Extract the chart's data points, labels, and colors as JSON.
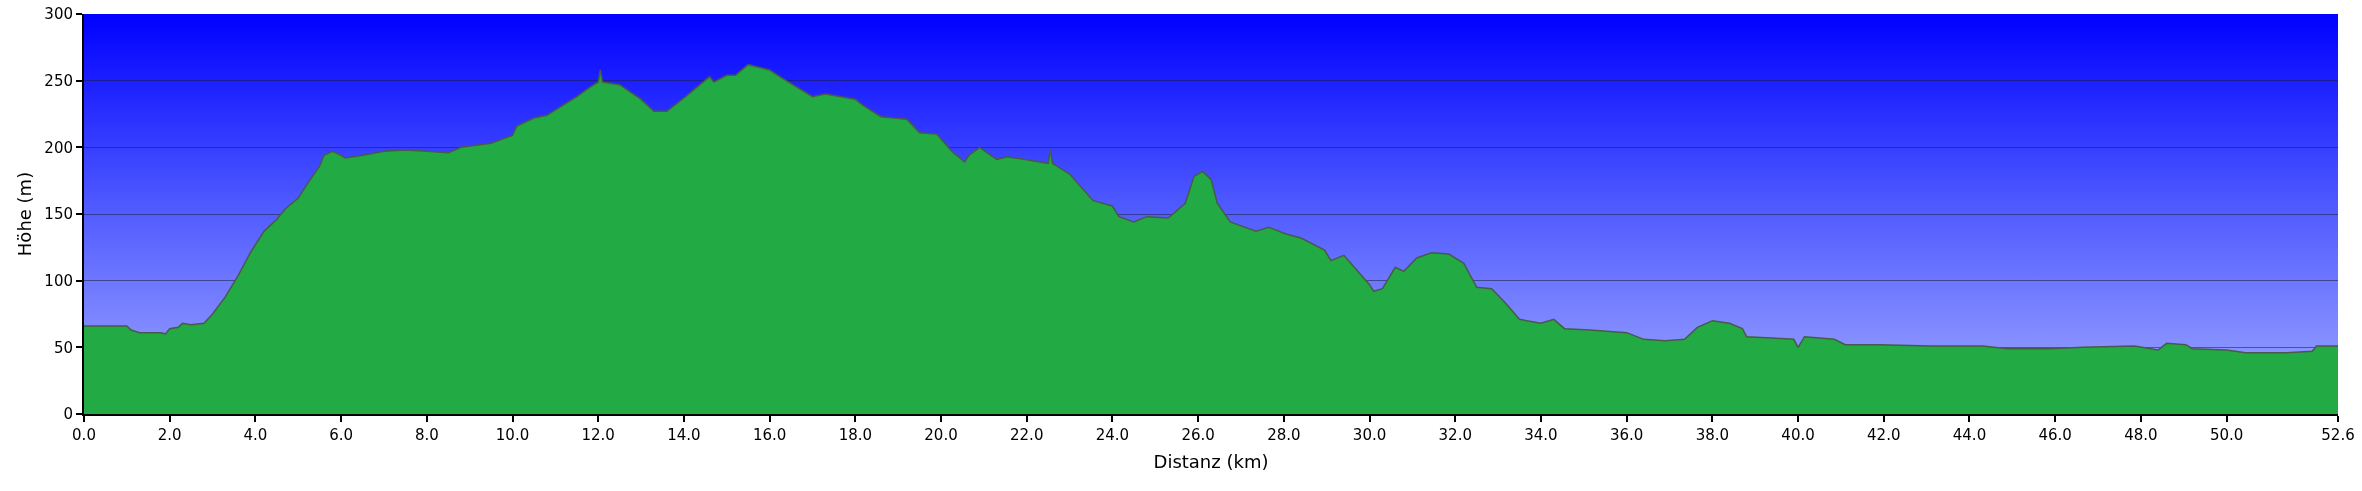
{
  "chart_data": {
    "type": "area",
    "xlabel": "Distanz (km)",
    "ylabel": "Höhe (m)",
    "xlim": [
      0,
      52.6
    ],
    "ylim": [
      0,
      300
    ],
    "xticks": [
      {
        "value": 0,
        "label": "0.0"
      },
      {
        "value": 2,
        "label": "2.0"
      },
      {
        "value": 4,
        "label": "4.0"
      },
      {
        "value": 6,
        "label": "6.0"
      },
      {
        "value": 8,
        "label": "8.0"
      },
      {
        "value": 10,
        "label": "10.0"
      },
      {
        "value": 12,
        "label": "12.0"
      },
      {
        "value": 14,
        "label": "14.0"
      },
      {
        "value": 16,
        "label": "16.0"
      },
      {
        "value": 18,
        "label": "18.0"
      },
      {
        "value": 20,
        "label": "20.0"
      },
      {
        "value": 22,
        "label": "22.0"
      },
      {
        "value": 24,
        "label": "24.0"
      },
      {
        "value": 26,
        "label": "26.0"
      },
      {
        "value": 28,
        "label": "28.0"
      },
      {
        "value": 30,
        "label": "30.0"
      },
      {
        "value": 32,
        "label": "32.0"
      },
      {
        "value": 34,
        "label": "34.0"
      },
      {
        "value": 36,
        "label": "36.0"
      },
      {
        "value": 38,
        "label": "38.0"
      },
      {
        "value": 40,
        "label": "40.0"
      },
      {
        "value": 42,
        "label": "42.0"
      },
      {
        "value": 44,
        "label": "44.0"
      },
      {
        "value": 46,
        "label": "46.0"
      },
      {
        "value": 48,
        "label": "48.0"
      },
      {
        "value": 50,
        "label": "50.0"
      },
      {
        "value": 52.6,
        "label": "52.6"
      }
    ],
    "yticks": [
      0,
      50,
      100,
      150,
      200,
      250,
      300
    ],
    "grid": "y",
    "series": [
      {
        "color": "#22aa44",
        "x": [
          0,
          0.5,
          1.0,
          1.1,
          1.3,
          1.8,
          1.9,
          2.0,
          2.2,
          2.3,
          2.5,
          2.8,
          3.0,
          3.3,
          3.6,
          3.9,
          4.2,
          4.5,
          4.7,
          5.0,
          5.2,
          5.5,
          5.6,
          5.8,
          6.0,
          6.1,
          6.5,
          7.0,
          7.5,
          8.0,
          8.5,
          8.8,
          9.5,
          10.0,
          10.1,
          10.5,
          10.8,
          11.5,
          11.8,
          12.0,
          12.05,
          12.1,
          12.5,
          13.0,
          13.3,
          13.6,
          14.0,
          14.6,
          14.7,
          15.0,
          15.2,
          15.5,
          16.0,
          16.34,
          17.0,
          17.3,
          18.0,
          18.2,
          18.6,
          19.2,
          19.5,
          19.9,
          20.25,
          20.55,
          20.65,
          20.9,
          21.3,
          21.55,
          22.5,
          22.55,
          22.6,
          23.0,
          23.55,
          24.0,
          24.15,
          24.5,
          24.8,
          25.3,
          25.7,
          25.9,
          26.1,
          26.3,
          26.45,
          26.75,
          27.35,
          27.65,
          28.05,
          28.4,
          28.95,
          29.1,
          29.4,
          29.7,
          30.0,
          30.1,
          30.3,
          30.6,
          30.8,
          31.1,
          31.45,
          31.85,
          32.2,
          32.5,
          32.85,
          33.15,
          33.5,
          34.0,
          34.3,
          34.55,
          35.15,
          36.0,
          36.4,
          36.9,
          37.35,
          37.65,
          38.0,
          38.4,
          38.7,
          38.8,
          39.4,
          39.9,
          40.0,
          40.15,
          40.85,
          41.1,
          41.9,
          43.1,
          44.3,
          44.9,
          45.85,
          46.65,
          47.85,
          48.4,
          48.6,
          49.05,
          49.2,
          50.0,
          50.45,
          51.4,
          52.0,
          52.1,
          52.6
        ],
        "values": [
          66,
          66,
          66,
          63,
          61,
          61,
          60,
          64,
          65,
          68,
          67,
          68,
          75,
          88,
          104,
          122,
          137,
          146,
          154,
          162,
          172,
          186,
          194,
          197,
          194,
          192,
          194,
          197,
          198,
          197,
          196,
          200,
          203,
          209,
          216,
          222,
          224,
          238,
          245,
          249,
          258,
          249,
          247,
          236,
          227,
          227,
          237,
          253,
          249,
          254,
          254,
          262,
          258,
          251,
          238,
          240,
          236,
          231,
          223,
          221,
          211,
          210,
          197,
          189,
          194,
          200,
          191,
          193,
          188,
          198,
          188,
          180,
          160,
          156,
          148,
          144,
          148,
          147,
          158,
          178,
          182,
          176,
          158,
          144,
          137,
          140,
          135,
          132,
          123,
          115,
          119,
          108,
          97,
          92,
          94,
          110,
          107,
          117,
          121,
          120,
          113,
          95,
          94,
          84,
          71,
          68,
          71,
          64,
          63,
          61,
          56,
          55,
          56,
          65,
          70,
          68,
          64,
          58,
          57,
          56,
          50,
          58,
          56,
          52,
          52,
          51,
          51,
          49,
          49,
          50,
          51,
          48,
          53,
          52,
          49,
          48,
          46,
          46,
          47,
          51,
          51
        ]
      }
    ]
  }
}
